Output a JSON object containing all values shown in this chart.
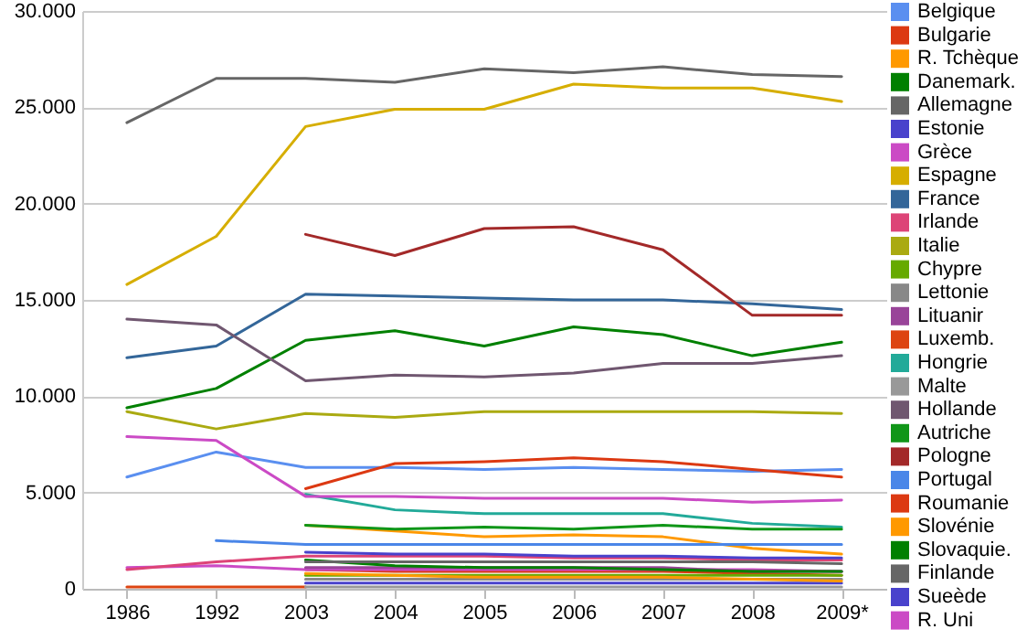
{
  "chart_data": {
    "type": "line",
    "categories": [
      "1986",
      "1992",
      "2003",
      "2004",
      "2005",
      "2006",
      "2007",
      "2008",
      "2009*"
    ],
    "ylim": [
      0,
      30000
    ],
    "yticks": [
      0,
      {
        "value": 5000,
        "label": "5.000"
      },
      {
        "value": 10000,
        "label": "10.000"
      },
      {
        "value": 15000,
        "label": "15.000"
      },
      {
        "value": 20000,
        "label": "20.000"
      },
      {
        "value": 25000,
        "label": "25.000"
      },
      {
        "value": 30000,
        "label": "30.000"
      }
    ],
    "grid": "y",
    "legend": "right",
    "marker": "none",
    "line_style": "solid",
    "series": [
      {
        "name": "Belgique",
        "color": "#5a8ff0",
        "values": [
          5800,
          7100,
          6300,
          6300,
          6200,
          6300,
          6200,
          6100,
          6200
        ]
      },
      {
        "name": "Bulgarie",
        "color": "#dc3912",
        "values": [
          null,
          null,
          1000,
          900,
          900,
          900,
          900,
          800,
          700
        ]
      },
      {
        "name": "R. Tchèque",
        "color": "#ff9900",
        "values": [
          null,
          null,
          3300,
          3000,
          2700,
          2800,
          2700,
          2100,
          1800
        ]
      },
      {
        "name": "Danemark.",
        "color": "#008000",
        "values": [
          9400,
          10400,
          12900,
          13400,
          12600,
          13600,
          13200,
          12100,
          12800
        ]
      },
      {
        "name": "Allemagne",
        "color": "#666666",
        "values": [
          24200,
          26500,
          26500,
          26300,
          27000,
          26800,
          27100,
          26700,
          26600
        ]
      },
      {
        "name": "Estonie",
        "color": "#4942cc",
        "values": [
          null,
          null,
          300,
          300,
          300,
          300,
          300,
          300,
          300
        ]
      },
      {
        "name": "Grèce",
        "color": "#cb4ac5",
        "values": [
          1100,
          1200,
          1000,
          1000,
          1000,
          1000,
          1000,
          1000,
          900
        ]
      },
      {
        "name": "Espagne",
        "color": "#d6ae00",
        "values": [
          15800,
          18300,
          24000,
          24900,
          24900,
          26200,
          26000,
          26000,
          25300
        ]
      },
      {
        "name": "France",
        "color": "#336699",
        "values": [
          12000,
          12600,
          15300,
          15200,
          15100,
          15000,
          15000,
          14800,
          14500
        ]
      },
      {
        "name": "Irlande",
        "color": "#dd4477",
        "values": [
          1000,
          1400,
          1700,
          1700,
          1700,
          1600,
          1600,
          1500,
          1500
        ]
      },
      {
        "name": "Italie",
        "color": "#aaaa11",
        "values": [
          9200,
          8300,
          9100,
          8900,
          9200,
          9200,
          9200,
          9200,
          9100
        ]
      },
      {
        "name": "Chypre",
        "color": "#66aa00",
        "values": [
          null,
          null,
          700,
          700,
          700,
          700,
          700,
          700,
          700
        ]
      },
      {
        "name": "Lettonie",
        "color": "#888888",
        "values": [
          null,
          null,
          500,
          500,
          500,
          500,
          500,
          500,
          500
        ]
      },
      {
        "name": "Lituanir",
        "color": "#994499",
        "values": [
          null,
          null,
          1100,
          1100,
          1100,
          1100,
          1100,
          900,
          900
        ]
      },
      {
        "name": "Luxemb.",
        "color": "#dd4411",
        "values": [
          100,
          100,
          100,
          null,
          null,
          null,
          null,
          null,
          null
        ]
      },
      {
        "name": "Hongrie",
        "color": "#22aa99",
        "values": [
          null,
          null,
          4900,
          4100,
          3900,
          3900,
          3900,
          3400,
          3200
        ]
      },
      {
        "name": "Malte",
        "color": "#999999",
        "values": [
          null,
          null,
          100,
          100,
          100,
          100,
          100,
          100,
          100
        ]
      },
      {
        "name": "Hollande",
        "color": "#705770",
        "values": [
          14000,
          13700,
          10800,
          11100,
          11000,
          11200,
          11700,
          11700,
          12100
        ]
      },
      {
        "name": "Autriche",
        "color": "#109618",
        "values": [
          null,
          null,
          3300,
          3100,
          3200,
          3100,
          3300,
          3100,
          3100
        ]
      },
      {
        "name": "Pologne",
        "color": "#a32929",
        "values": [
          null,
          null,
          18400,
          17300,
          18700,
          18800,
          17600,
          14200,
          14200
        ]
      },
      {
        "name": "Portugal",
        "color": "#4a86e8",
        "values": [
          null,
          2500,
          2300,
          2300,
          2300,
          2300,
          2300,
          2300,
          2300
        ]
      },
      {
        "name": "Roumanie",
        "color": "#dc3912",
        "values": [
          null,
          null,
          5200,
          6500,
          6600,
          6800,
          6600,
          6200,
          5800
        ]
      },
      {
        "name": "Slovénie",
        "color": "#ff9900",
        "values": [
          null,
          null,
          800,
          700,
          600,
          600,
          600,
          500,
          400
        ]
      },
      {
        "name": "Slovaquie.",
        "color": "#008000",
        "values": [
          null,
          null,
          1500,
          1200,
          1100,
          1100,
          1000,
          900,
          900
        ]
      },
      {
        "name": "Finlande",
        "color": "#666666",
        "values": [
          null,
          null,
          1400,
          1400,
          1400,
          1400,
          1400,
          1400,
          1300
        ]
      },
      {
        "name": "Sueède",
        "color": "#4942cc",
        "values": [
          null,
          null,
          1900,
          1800,
          1800,
          1700,
          1700,
          1600,
          1600
        ]
      },
      {
        "name": "R. Uni",
        "color": "#cb4ac5",
        "values": [
          7900,
          7700,
          4800,
          4800,
          4700,
          4700,
          4700,
          4500,
          4600
        ]
      }
    ]
  }
}
